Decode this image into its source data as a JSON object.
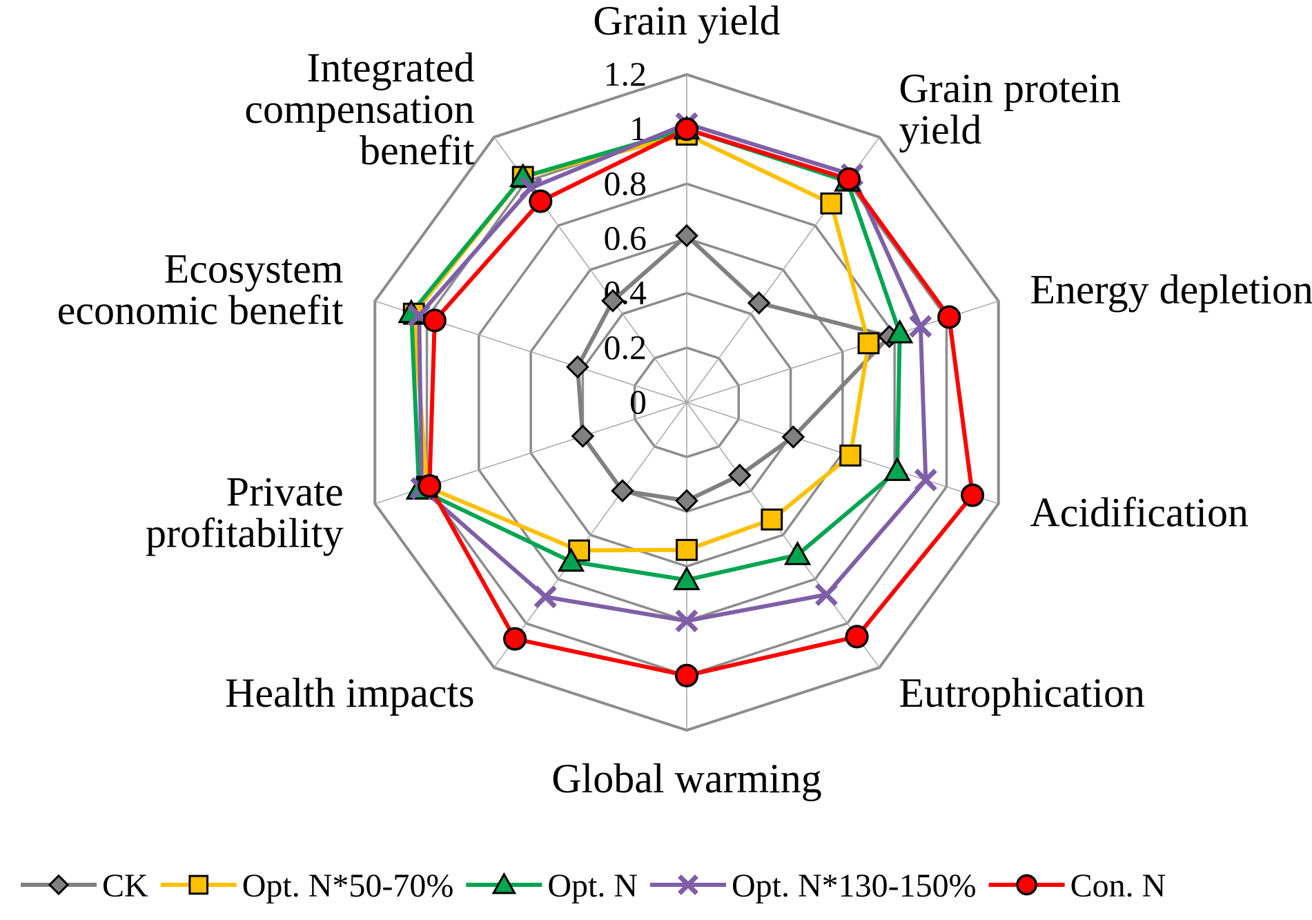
{
  "chart_data": {
    "type": "radar",
    "axes": [
      [
        "Grain yield"
      ],
      [
        "Grain protein",
        "yield"
      ],
      [
        "Energy depletion"
      ],
      [
        "Acidification"
      ],
      [
        "Eutrophication"
      ],
      [
        "Global warming"
      ],
      [
        "Health impacts"
      ],
      [
        "Private",
        "profitability"
      ],
      [
        "Ecosystem",
        "economic benefit"
      ],
      [
        "Integrated",
        "compensation",
        "benefit"
      ]
    ],
    "r_ticks": [
      "0",
      "0.2",
      "0.4",
      "0.6",
      "0.8",
      "1",
      "1.2"
    ],
    "r_range": [
      0,
      1.2
    ],
    "series": [
      {
        "name": "CK",
        "color": "#808080",
        "marker": "diamond",
        "marker_fill": "#808080",
        "values": [
          0.61,
          0.45,
          0.78,
          0.41,
          0.33,
          0.36,
          0.4,
          0.4,
          0.42,
          0.46
        ]
      },
      {
        "name": "Opt. N*50-70%",
        "color": "#FFC000",
        "marker": "square",
        "marker_fill": "#FFC000",
        "values": [
          0.98,
          0.9,
          0.7,
          0.63,
          0.53,
          0.54,
          0.67,
          1.0,
          1.05,
          1.02
        ]
      },
      {
        "name": "Opt. N",
        "color": "#00A550",
        "marker": "triangle",
        "marker_fill": "#00A550",
        "values": [
          1.0,
          1.0,
          0.82,
          0.81,
          0.69,
          0.65,
          0.72,
          1.03,
          1.06,
          1.02
        ]
      },
      {
        "name": "Opt. N*130-150%",
        "color": "#7F5FA7",
        "marker": "x",
        "marker_fill": "#7F5FA7",
        "values": [
          1.02,
          1.03,
          0.9,
          0.92,
          0.87,
          0.8,
          0.88,
          1.02,
          1.03,
          0.97
        ]
      },
      {
        "name": "Con. N",
        "color": "#FF0000",
        "marker": "circle",
        "marker_fill": "#FF0000",
        "values": [
          1.0,
          1.01,
          1.01,
          1.1,
          1.06,
          1.0,
          1.07,
          0.99,
          0.97,
          0.91
        ]
      }
    ],
    "legend_position": "bottom"
  }
}
